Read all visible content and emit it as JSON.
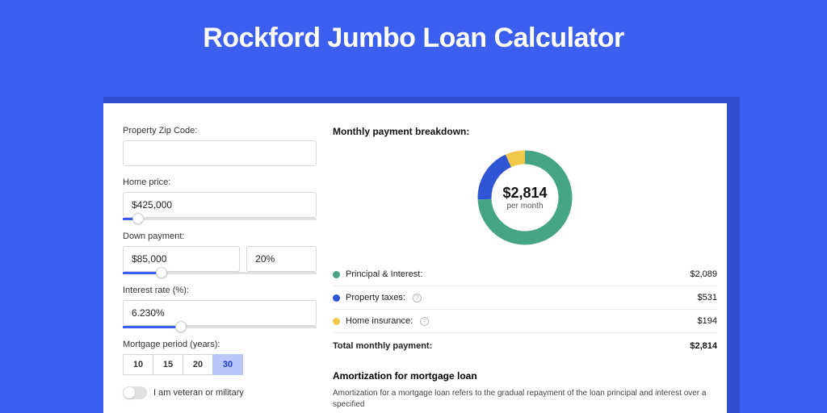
{
  "title": "Rockford Jumbo Loan Calculator",
  "form": {
    "zip": {
      "label": "Property Zip Code:",
      "value": ""
    },
    "price": {
      "label": "Home price:",
      "value": "$425,000",
      "slider_pct": 8
    },
    "down": {
      "label": "Down payment:",
      "amount": "$85,000",
      "pct": "20%",
      "slider_pct": 20
    },
    "rate": {
      "label": "Interest rate (%):",
      "value": "6.230%",
      "slider_pct": 30
    },
    "period": {
      "label": "Mortgage period (years):",
      "options": [
        "10",
        "15",
        "20",
        "30"
      ],
      "selected": "30"
    },
    "veteran": {
      "label": "I am veteran or military",
      "on": false
    }
  },
  "breakdown": {
    "title": "Monthly payment breakdown:",
    "center_amount": "$2,814",
    "center_sub": "per month",
    "items": [
      {
        "label": "Principal & Interest:",
        "value": "$2,089",
        "color": "#45a386",
        "info": false
      },
      {
        "label": "Property taxes:",
        "value": "$531",
        "color": "#2f55d4",
        "info": true
      },
      {
        "label": "Home insurance:",
        "value": "$194",
        "color": "#f0c94a",
        "info": true
      }
    ],
    "total": {
      "label": "Total monthly payment:",
      "value": "$2,814"
    },
    "donut": {
      "segments": [
        {
          "color": "#45a386",
          "fraction": 0.742
        },
        {
          "color": "#2f55d4",
          "fraction": 0.189
        },
        {
          "color": "#f0c94a",
          "fraction": 0.069
        }
      ],
      "stroke_width": 17,
      "radius": 50
    }
  },
  "amortization": {
    "title": "Amortization for mortgage loan",
    "body": "Amortization for a mortgage loan refers to the gradual repayment of the loan principal and interest over a specified"
  },
  "colors": {
    "page_bg": "#3c5ff0",
    "input_border": "#d6d6d6"
  }
}
